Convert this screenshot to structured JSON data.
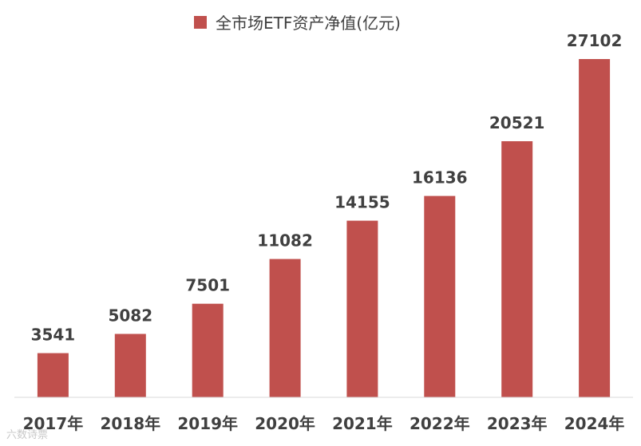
{
  "chart_data": {
    "type": "bar",
    "categories": [
      "2017年",
      "2018年",
      "2019年",
      "2020年",
      "2021年",
      "2022年",
      "2023年",
      "2024年"
    ],
    "series": [
      {
        "name": "全市场ETF资产净值(亿元)",
        "values": [
          3541,
          5082,
          7501,
          11082,
          14155,
          16136,
          20521,
          27102
        ]
      }
    ],
    "title": "",
    "xlabel": "",
    "ylabel": "",
    "ylim": [
      0,
      28000
    ],
    "grid": false,
    "legend": "top-center",
    "data_labels": true,
    "colors": {
      "bar": "#C0504D",
      "axis": "#D9D9D9",
      "text": "#404040"
    }
  },
  "watermark": {
    "text": "六数诗票"
  }
}
